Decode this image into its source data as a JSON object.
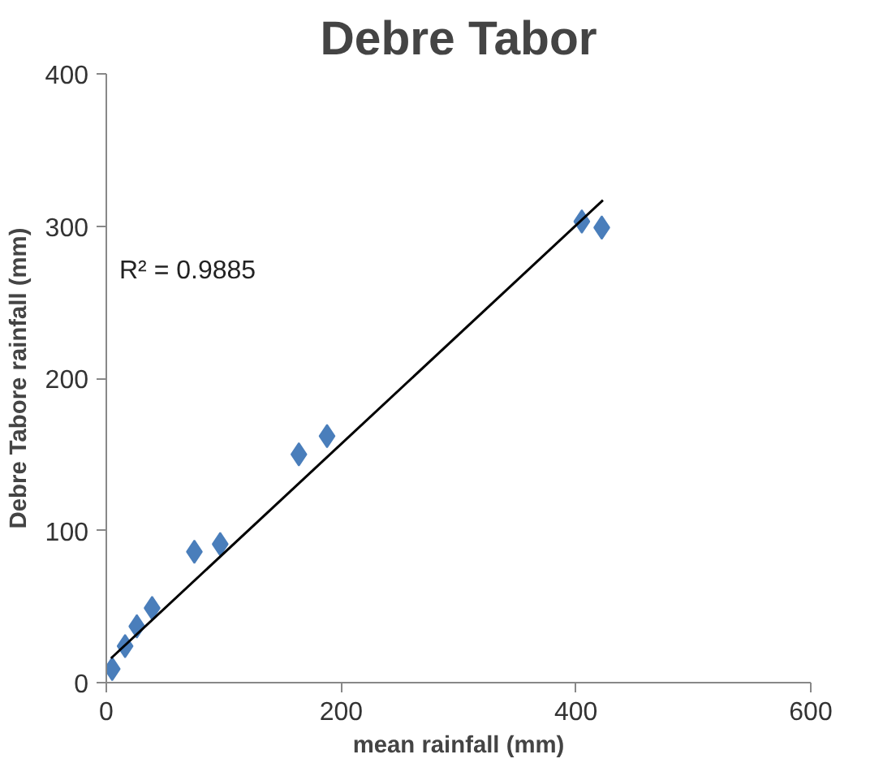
{
  "chart_data": {
    "type": "scatter",
    "title": "Debre Tabor",
    "xlabel": "mean rainfall (mm)",
    "ylabel": "Debre Tabore rainfall (mm)",
    "xlim": [
      0,
      600
    ],
    "ylim": [
      0,
      400
    ],
    "xticks": [
      0,
      200,
      400,
      600
    ],
    "yticks": [
      0,
      100,
      200,
      300,
      400
    ],
    "marker": "diamond",
    "grid": false,
    "series": [
      {
        "color": "#4a7ebb",
        "x": [
          5,
          16,
          26,
          39,
          75,
          97,
          164,
          188,
          405,
          422
        ],
        "values": [
          9,
          24,
          37,
          49,
          86,
          91,
          150,
          162,
          303,
          299
        ]
      },
      {
        "type": "line",
        "color": "#000000",
        "marker": "none",
        "x": [
          4,
          423
        ],
        "values": [
          16,
          317
        ]
      }
    ],
    "annotations": [
      "R² = 0.9885"
    ]
  }
}
